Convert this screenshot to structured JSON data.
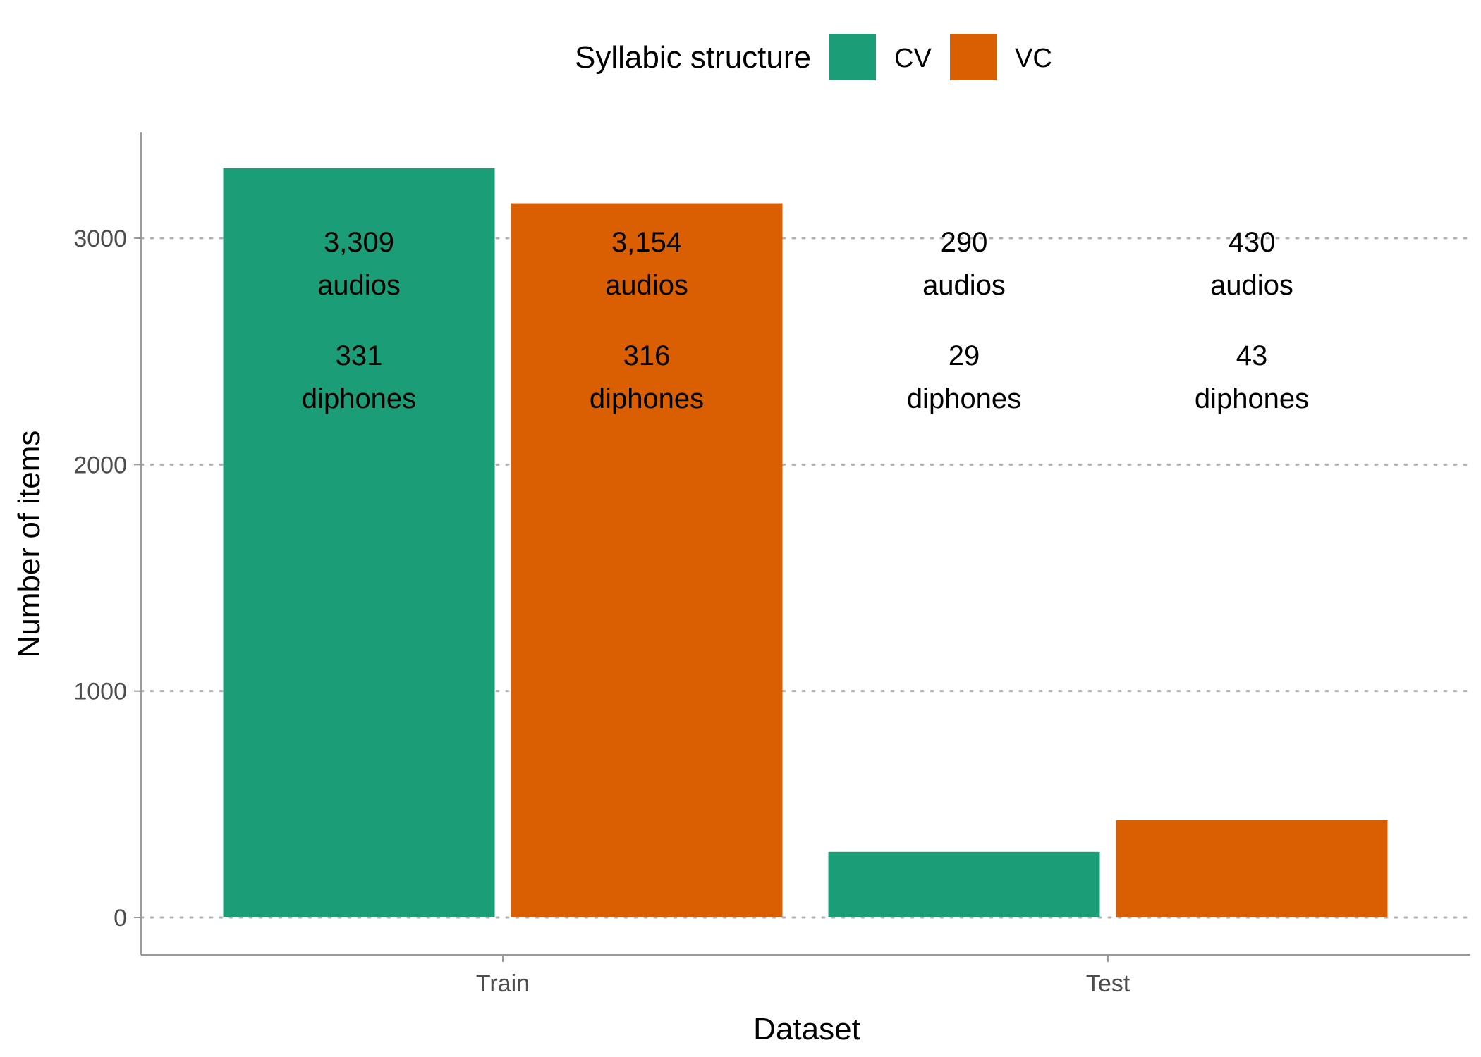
{
  "chart_data": {
    "type": "bar",
    "xlabel": "Dataset",
    "ylabel": "Number of items",
    "legend": {
      "title": "Syllabic structure",
      "position": "top"
    },
    "categories": [
      "Train",
      "Test"
    ],
    "ylim": [
      0,
      3450
    ],
    "yticks": [
      0,
      1000,
      2000,
      3000
    ],
    "grid": "horizontal dotted",
    "series": [
      {
        "name": "CV",
        "color": "#1B9E77",
        "values": [
          3309,
          290
        ],
        "labels": [
          {
            "audios": "3,309",
            "audios_word": "audios",
            "diphones": "331",
            "diphones_word": "diphones"
          },
          {
            "audios": "290",
            "audios_word": "audios",
            "diphones": "29",
            "diphones_word": "diphones"
          }
        ]
      },
      {
        "name": "VC",
        "color": "#D95F02",
        "values": [
          3154,
          430
        ],
        "labels": [
          {
            "audios": "3,154",
            "audios_word": "audios",
            "diphones": "316",
            "diphones_word": "diphones"
          },
          {
            "audios": "430",
            "audios_word": "audios",
            "diphones": "43",
            "diphones_word": "diphones"
          }
        ]
      }
    ]
  }
}
